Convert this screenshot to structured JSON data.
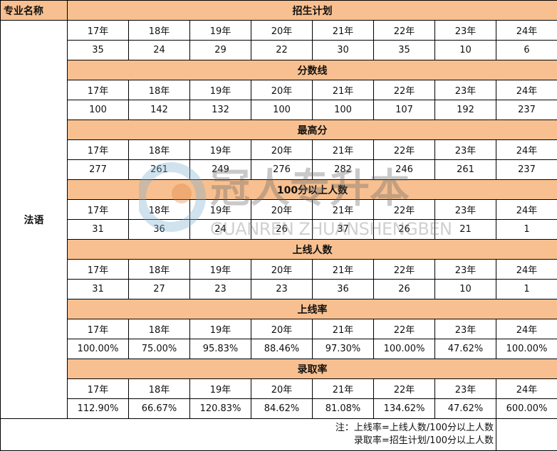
{
  "header": {
    "major_label": "专业名称",
    "major": "法语"
  },
  "years": [
    "17年",
    "18年",
    "19年",
    "20年",
    "21年",
    "22年",
    "23年",
    "24年"
  ],
  "sections": [
    {
      "title": "招生计划",
      "values": [
        "35",
        "24",
        "29",
        "22",
        "30",
        "35",
        "10",
        "6"
      ]
    },
    {
      "title": "分数线",
      "values": [
        "100",
        "142",
        "132",
        "100",
        "100",
        "107",
        "192",
        "237"
      ]
    },
    {
      "title": "最高分",
      "values": [
        "277",
        "261",
        "249",
        "276",
        "282",
        "246",
        "261",
        "237"
      ]
    },
    {
      "title": "100分以上人数",
      "values": [
        "31",
        "36",
        "24",
        "26",
        "37",
        "26",
        "21",
        "1"
      ]
    },
    {
      "title": "上线人数",
      "values": [
        "31",
        "27",
        "23",
        "23",
        "36",
        "26",
        "10",
        "1"
      ]
    },
    {
      "title": "上线率",
      "values": [
        "100.00%",
        "75.00%",
        "95.83%",
        "88.46%",
        "97.30%",
        "100.00%",
        "47.62%",
        "100.00%"
      ]
    },
    {
      "title": "录取率",
      "values": [
        "112.90%",
        "66.67%",
        "120.83%",
        "84.62%",
        "81.08%",
        "134.62%",
        "47.62%",
        "600.00%"
      ]
    }
  ],
  "note": {
    "line1": "注：上线率=上线人数/100分以上人数",
    "line2": "录取率=招生计划/100分以上人数"
  },
  "watermark": {
    "text": "冠人专升本",
    "subtext": "GUANRENZHUANSHENGBEN"
  },
  "colors": {
    "section_header": "#f8c090"
  }
}
